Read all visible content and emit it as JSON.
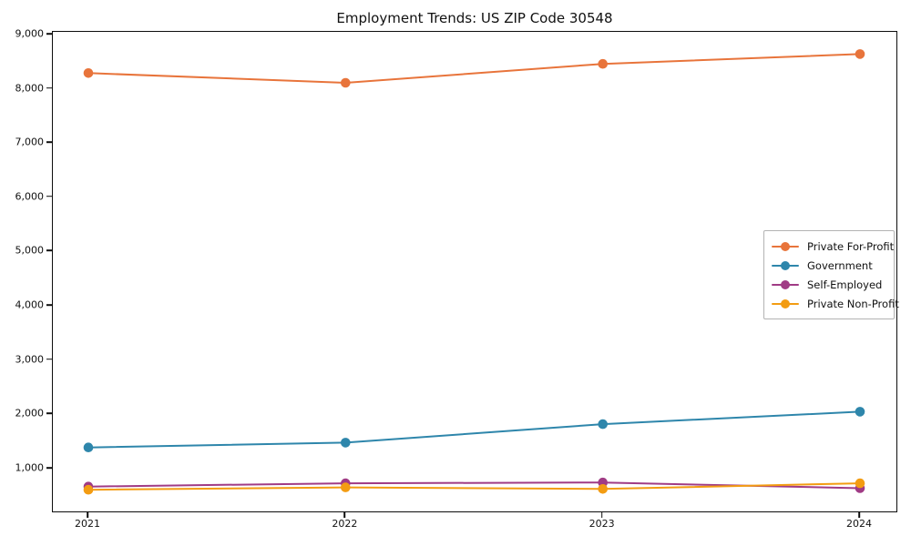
{
  "chart_data": {
    "type": "line",
    "title": "Employment Trends: US ZIP Code 30548",
    "categories": [
      "2021",
      "2022",
      "2023",
      "2024"
    ],
    "series": [
      {
        "name": "Private For-Profit",
        "color": "#E8743B",
        "values": [
          8290,
          8110,
          8460,
          8640
        ]
      },
      {
        "name": "Government",
        "color": "#2E86AB",
        "values": [
          1390,
          1480,
          1820,
          2050
        ]
      },
      {
        "name": "Self-Employed",
        "color": "#A03B85",
        "values": [
          670,
          730,
          745,
          640
        ]
      },
      {
        "name": "Private Non-Profit",
        "color": "#F39C12",
        "values": [
          610,
          655,
          625,
          730
        ]
      }
    ],
    "xlabel": "",
    "ylabel": "",
    "ylim": [
      178,
      9050
    ],
    "yticks": [
      {
        "value": 1000,
        "label": "1,000"
      },
      {
        "value": 2000,
        "label": "2,000"
      },
      {
        "value": 3000,
        "label": "3,000"
      },
      {
        "value": 4000,
        "label": "4,000"
      },
      {
        "value": 5000,
        "label": "5,000"
      },
      {
        "value": 6000,
        "label": "6,000"
      },
      {
        "value": 7000,
        "label": "7,000"
      },
      {
        "value": 8000,
        "label": "8,000"
      },
      {
        "value": 9000,
        "label": "9,000"
      }
    ],
    "grid": false,
    "legend_position": "center right",
    "marker": "circle",
    "background_color": "#ffffff"
  }
}
